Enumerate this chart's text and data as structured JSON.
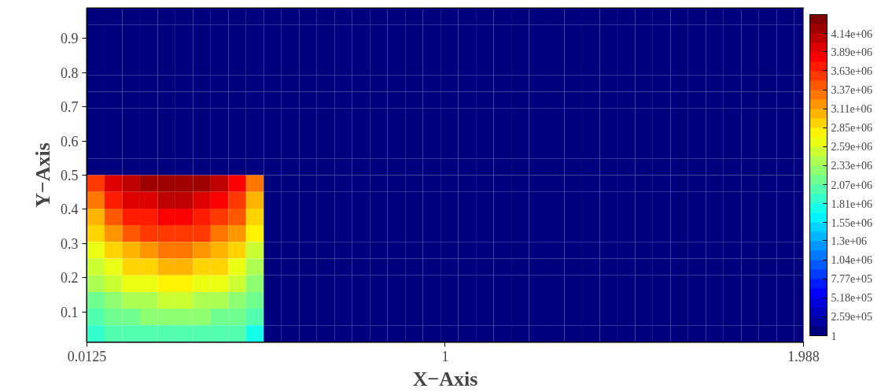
{
  "chart_data": {
    "type": "heatmap",
    "xlabel": "X−Axis",
    "ylabel": "Y−Axis",
    "x": [
      0.036875,
      0.085625,
      0.134375,
      0.183125,
      0.231875,
      0.280625,
      0.329375,
      0.378125,
      0.426875,
      0.475625,
      0.524375,
      0.573125,
      0.621875,
      0.670625,
      0.719375,
      0.768125,
      0.816875,
      0.865625,
      0.914375,
      0.963125,
      1.011875,
      1.060625,
      1.109375,
      1.158125,
      1.206875,
      1.255625,
      1.304375,
      1.353125,
      1.401875,
      1.450625,
      1.499375,
      1.548125,
      1.596875,
      1.645625,
      1.694375,
      1.743125,
      1.791875,
      1.840625,
      1.889375,
      1.938125,
      1.986875
    ],
    "y": [
      0.963125,
      0.914375,
      0.865625,
      0.816875,
      0.768125,
      0.719375,
      0.670625,
      0.621875,
      0.573125,
      0.524375,
      0.475625,
      0.426875,
      0.378125,
      0.329375,
      0.280625,
      0.231875,
      0.183125,
      0.134375,
      0.085625,
      0.036875
    ],
    "cells": [
      [
        1,
        1,
        1,
        1,
        1,
        1,
        1,
        1,
        1,
        1,
        1,
        1,
        1,
        1,
        1,
        1,
        1,
        1,
        1,
        1,
        1,
        1,
        1,
        1,
        1,
        1,
        1,
        1,
        1,
        1,
        1,
        1,
        1,
        1,
        1,
        1,
        1,
        1,
        1,
        1,
        1
      ],
      [
        1,
        1,
        1,
        1,
        1,
        1,
        1,
        1,
        1,
        1,
        1,
        1,
        1,
        1,
        1,
        1,
        1,
        1,
        1,
        1,
        1,
        1,
        1,
        1,
        1,
        1,
        1,
        1,
        1,
        1,
        1,
        1,
        1,
        1,
        1,
        1,
        1,
        1,
        1,
        1,
        1
      ],
      [
        1,
        1,
        1,
        1,
        1,
        1,
        1,
        1,
        1,
        1,
        1,
        1,
        1,
        1,
        1,
        1,
        1,
        1,
        1,
        1,
        1,
        1,
        1,
        1,
        1,
        1,
        1,
        1,
        1,
        1,
        1,
        1,
        1,
        1,
        1,
        1,
        1,
        1,
        1,
        1,
        1
      ],
      [
        1,
        1,
        1,
        1,
        1,
        1,
        1,
        1,
        1,
        1,
        1,
        1,
        1,
        1,
        1,
        1,
        1,
        1,
        1,
        1,
        1,
        1,
        1,
        1,
        1,
        1,
        1,
        1,
        1,
        1,
        1,
        1,
        1,
        1,
        1,
        1,
        1,
        1,
        1,
        1,
        1
      ],
      [
        1,
        1,
        1,
        1,
        1,
        1,
        1,
        1,
        1,
        1,
        1,
        1,
        1,
        1,
        1,
        1,
        1,
        1,
        1,
        1,
        1,
        1,
        1,
        1,
        1,
        1,
        1,
        1,
        1,
        1,
        1,
        1,
        1,
        1,
        1,
        1,
        1,
        1,
        1,
        1,
        1
      ],
      [
        1,
        1,
        1,
        1,
        1,
        1,
        1,
        1,
        1,
        1,
        1,
        1,
        1,
        1,
        1,
        1,
        1,
        1,
        1,
        1,
        1,
        1,
        1,
        1,
        1,
        1,
        1,
        1,
        1,
        1,
        1,
        1,
        1,
        1,
        1,
        1,
        1,
        1,
        1,
        1,
        1
      ],
      [
        1,
        1,
        1,
        1,
        1,
        1,
        1,
        1,
        1,
        1,
        1,
        1,
        1,
        1,
        1,
        1,
        1,
        1,
        1,
        1,
        1,
        1,
        1,
        1,
        1,
        1,
        1,
        1,
        1,
        1,
        1,
        1,
        1,
        1,
        1,
        1,
        1,
        1,
        1,
        1,
        1
      ],
      [
        1,
        1,
        1,
        1,
        1,
        1,
        1,
        1,
        1,
        1,
        1,
        1,
        1,
        1,
        1,
        1,
        1,
        1,
        1,
        1,
        1,
        1,
        1,
        1,
        1,
        1,
        1,
        1,
        1,
        1,
        1,
        1,
        1,
        1,
        1,
        1,
        1,
        1,
        1,
        1,
        1
      ],
      [
        1,
        1,
        1,
        1,
        1,
        1,
        1,
        1,
        1,
        1,
        1,
        1,
        1,
        1,
        1,
        1,
        1,
        1,
        1,
        1,
        1,
        1,
        1,
        1,
        1,
        1,
        1,
        1,
        1,
        1,
        1,
        1,
        1,
        1,
        1,
        1,
        1,
        1,
        1,
        1,
        1
      ],
      [
        1,
        1,
        1,
        1,
        1,
        1,
        1,
        1,
        1,
        1,
        1,
        1,
        1,
        1,
        1,
        1,
        1,
        1,
        1,
        1,
        1,
        1,
        1,
        1,
        1,
        1,
        1,
        1,
        1,
        1,
        1,
        1,
        1,
        1,
        1,
        1,
        1,
        1,
        1,
        1,
        1
      ],
      [
        3500000,
        3900000,
        4100000,
        4200000,
        4250000,
        4250000,
        4200000,
        4050000,
        3800000,
        3300000,
        1,
        1,
        1,
        1,
        1,
        1,
        1,
        1,
        1,
        1,
        1,
        1,
        1,
        1,
        1,
        1,
        1,
        1,
        1,
        1,
        1,
        1,
        1,
        1,
        1,
        1,
        1,
        1,
        1,
        1,
        1
      ],
      [
        3300000,
        3700000,
        3900000,
        4000000,
        4050000,
        4050000,
        4000000,
        3850000,
        3600000,
        3100000,
        1,
        1,
        1,
        1,
        1,
        1,
        1,
        1,
        1,
        1,
        1,
        1,
        1,
        1,
        1,
        1,
        1,
        1,
        1,
        1,
        1,
        1,
        1,
        1,
        1,
        1,
        1,
        1,
        1,
        1,
        1
      ],
      [
        3100000,
        3450000,
        3650000,
        3750000,
        3800000,
        3800000,
        3750000,
        3600000,
        3400000,
        2950000,
        1,
        1,
        1,
        1,
        1,
        1,
        1,
        1,
        1,
        1,
        1,
        1,
        1,
        1,
        1,
        1,
        1,
        1,
        1,
        1,
        1,
        1,
        1,
        1,
        1,
        1,
        1,
        1,
        1,
        1,
        1
      ],
      [
        2900000,
        3200000,
        3400000,
        3500000,
        3550000,
        3550000,
        3500000,
        3350000,
        3150000,
        2750000,
        1,
        1,
        1,
        1,
        1,
        1,
        1,
        1,
        1,
        1,
        1,
        1,
        1,
        1,
        1,
        1,
        1,
        1,
        1,
        1,
        1,
        1,
        1,
        1,
        1,
        1,
        1,
        1,
        1,
        1,
        1
      ],
      [
        2700000,
        2950000,
        3100000,
        3200000,
        3250000,
        3250000,
        3200000,
        3100000,
        2900000,
        2550000,
        1,
        1,
        1,
        1,
        1,
        1,
        1,
        1,
        1,
        1,
        1,
        1,
        1,
        1,
        1,
        1,
        1,
        1,
        1,
        1,
        1,
        1,
        1,
        1,
        1,
        1,
        1,
        1,
        1,
        1,
        1
      ],
      [
        2500000,
        2700000,
        2850000,
        2950000,
        3000000,
        3000000,
        2950000,
        2850000,
        2700000,
        2400000,
        1,
        1,
        1,
        1,
        1,
        1,
        1,
        1,
        1,
        1,
        1,
        1,
        1,
        1,
        1,
        1,
        1,
        1,
        1,
        1,
        1,
        1,
        1,
        1,
        1,
        1,
        1,
        1,
        1,
        1,
        1
      ],
      [
        2350000,
        2500000,
        2600000,
        2700000,
        2750000,
        2750000,
        2700000,
        2600000,
        2500000,
        2250000,
        1,
        1,
        1,
        1,
        1,
        1,
        1,
        1,
        1,
        1,
        1,
        1,
        1,
        1,
        1,
        1,
        1,
        1,
        1,
        1,
        1,
        1,
        1,
        1,
        1,
        1,
        1,
        1,
        1,
        1,
        1
      ],
      [
        2200000,
        2300000,
        2400000,
        2450000,
        2500000,
        2500000,
        2450000,
        2400000,
        2300000,
        2100000,
        1,
        1,
        1,
        1,
        1,
        1,
        1,
        1,
        1,
        1,
        1,
        1,
        1,
        1,
        1,
        1,
        1,
        1,
        1,
        1,
        1,
        1,
        1,
        1,
        1,
        1,
        1,
        1,
        1,
        1,
        1
      ],
      [
        2050000,
        2150000,
        2200000,
        2250000,
        2250000,
        2250000,
        2250000,
        2200000,
        2150000,
        1950000,
        1,
        1,
        1,
        1,
        1,
        1,
        1,
        1,
        1,
        1,
        1,
        1,
        1,
        1,
        1,
        1,
        1,
        1,
        1,
        1,
        1,
        1,
        1,
        1,
        1,
        1,
        1,
        1,
        1,
        1,
        1
      ],
      [
        1900000,
        1950000,
        2000000,
        2050000,
        2050000,
        2050000,
        2050000,
        2000000,
        1950000,
        1800000,
        1,
        1,
        1,
        1,
        1,
        1,
        1,
        1,
        1,
        1,
        1,
        1,
        1,
        1,
        1,
        1,
        1,
        1,
        1,
        1,
        1,
        1,
        1,
        1,
        1,
        1,
        1,
        1,
        1,
        1,
        1
      ]
    ],
    "xlim": [
      0.0125,
      1.988
    ],
    "ylim": [
      0.0125,
      0.9875
    ],
    "xticks": [
      0.0125,
      1,
      1.988
    ],
    "yticks": [
      0.1,
      0.2,
      0.3,
      0.4,
      0.5,
      0.6,
      0.7,
      0.8,
      0.9
    ],
    "clim": [
      1,
      4400000
    ],
    "cticks": [
      1,
      {
        "value": 259000,
        "label": "2.59e+05"
      },
      {
        "value": 518000,
        "label": "5.18e+05"
      },
      {
        "value": 777000,
        "label": "7.77e+05"
      },
      {
        "value": 1040000,
        "label": "1.04e+06"
      },
      {
        "value": 1300000,
        "label": "1.3e+06"
      },
      {
        "value": 1550000,
        "label": "1.55e+06"
      },
      {
        "value": 1810000,
        "label": "1.81e+06"
      },
      {
        "value": 2070000,
        "label": "2.07e+06"
      },
      {
        "value": 2330000,
        "label": "2.33e+06"
      },
      {
        "value": 2590000,
        "label": "2.59e+06"
      },
      {
        "value": 2850000,
        "label": "2.85e+06"
      },
      {
        "value": 3110000,
        "label": "3.11e+06"
      },
      {
        "value": 3370000,
        "label": "3.37e+06"
      },
      {
        "value": 3630000,
        "label": "3.63e+06"
      },
      {
        "value": 3890000,
        "label": "3.89e+06"
      },
      {
        "value": 4140000,
        "label": "4.14e+06"
      }
    ],
    "grid": false
  }
}
